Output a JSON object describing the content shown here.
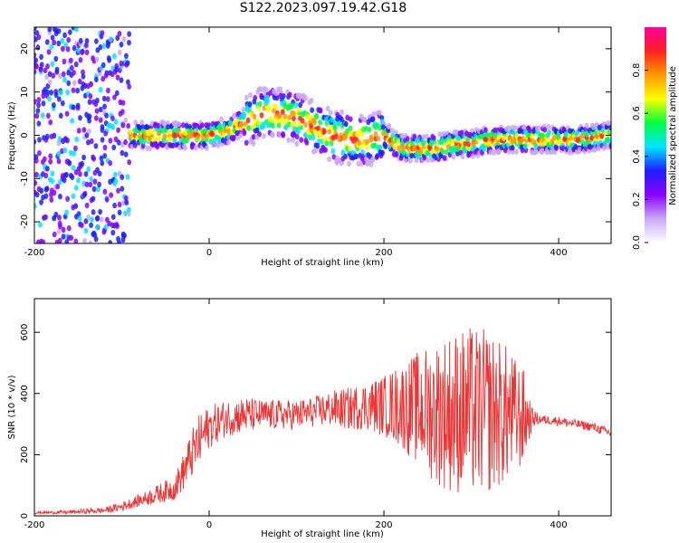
{
  "title": "S122.2023.097.19.42.G18",
  "chart_data": [
    {
      "type": "heatmap",
      "xlabel": "Height of straight line (km)",
      "ylabel": "Frequency (Hz)",
      "xlim": [
        -200,
        460
      ],
      "ylim": [
        -25,
        25
      ],
      "xticks": [
        -200,
        0,
        200,
        400
      ],
      "yticks": [
        -20,
        -10,
        0,
        10,
        20
      ],
      "colorbar": {
        "label": "Normalized spectral amplitude",
        "range": [
          0,
          1
        ],
        "ticks": [
          0.0,
          0.2,
          0.4,
          0.6,
          0.8
        ],
        "colors": [
          "#ffffff",
          "#c9a8f5",
          "#8b00ff",
          "#1e1eff",
          "#00e5ff",
          "#00ff40",
          "#ffff00",
          "#ff9900",
          "#ff2020",
          "#ff00a0"
        ]
      },
      "ridge": {
        "x": [
          -140,
          -110,
          -100,
          -90,
          -60,
          -20,
          0,
          20,
          40,
          60,
          80,
          100,
          120,
          140,
          160,
          180,
          200,
          220,
          240,
          260,
          280,
          300,
          320,
          340,
          360,
          380,
          400,
          420,
          440,
          460
        ],
        "y": [
          -1,
          0,
          -1,
          0,
          0,
          0,
          0,
          1,
          3,
          5,
          5,
          4,
          2,
          0,
          -1,
          -1,
          0,
          -3,
          -3,
          -3,
          -2,
          -2,
          -1,
          -1,
          -1,
          -1,
          -1,
          -1,
          -0.5,
          0
        ]
      }
    },
    {
      "type": "line",
      "xlabel": "Height of straight line (km)",
      "ylabel": "SNR (10 * v/v)",
      "xlim": [
        -200,
        460
      ],
      "ylim": [
        0,
        710
      ],
      "xticks": [
        -200,
        0,
        200,
        400
      ],
      "yticks": [
        0,
        200,
        400,
        600
      ],
      "series": [
        {
          "color": "#ef3232",
          "x": [
            -200,
            -160,
            -120,
            -100,
            -80,
            -60,
            -40,
            -30,
            -20,
            -10,
            0,
            20,
            40,
            60,
            80,
            100,
            120,
            140,
            160,
            180,
            200,
            220,
            240,
            260,
            280,
            300,
            320,
            340,
            360,
            370,
            380,
            400,
            420,
            440,
            460
          ],
          "y": [
            10,
            12,
            18,
            30,
            50,
            70,
            90,
            140,
            200,
            250,
            290,
            320,
            330,
            330,
            330,
            330,
            340,
            350,
            350,
            360,
            360,
            360,
            350,
            340,
            340,
            340,
            340,
            330,
            320,
            320,
            315,
            310,
            300,
            290,
            270
          ],
          "spread": [
            4,
            6,
            10,
            15,
            20,
            30,
            40,
            60,
            80,
            90,
            70,
            60,
            60,
            50,
            50,
            50,
            50,
            60,
            70,
            80,
            100,
            140,
            190,
            240,
            270,
            280,
            270,
            230,
            160,
            30,
            15,
            15,
            15,
            15,
            15
          ]
        }
      ]
    }
  ]
}
